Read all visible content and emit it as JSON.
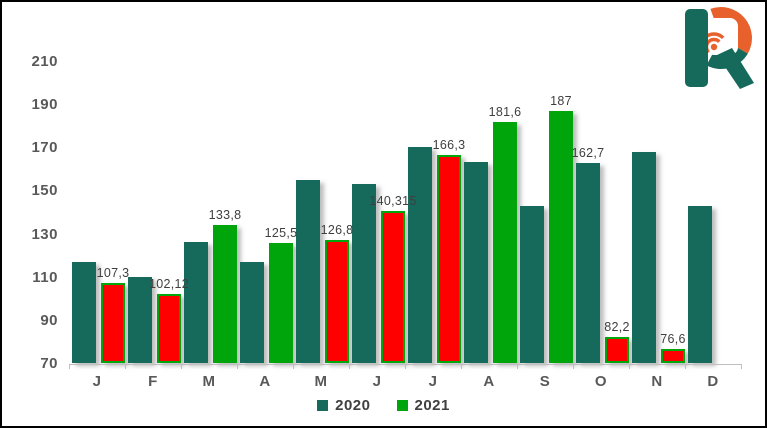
{
  "colors": {
    "teal_2020": "#166A5C",
    "green_2021": "#00A40B",
    "red_2021": "#FF0000",
    "red_border": "#00A40B",
    "axis_line": "#BFBFBF",
    "axis_text": "#595959",
    "data_label_text": "#3F3F3F",
    "frame_border": "#000000",
    "background": "#FFFFFF",
    "logo_teal": "#166A5C",
    "logo_orange": "#E8612C"
  },
  "chart_data": {
    "type": "bar",
    "title": "",
    "categories": [
      "J",
      "F",
      "M",
      "A",
      "M",
      "J",
      "J",
      "A",
      "S",
      "O",
      "N",
      "D"
    ],
    "y_axis": {
      "min": 70,
      "max": 210,
      "step": 20,
      "ticks": [
        70,
        90,
        110,
        130,
        150,
        170,
        190,
        210
      ]
    },
    "grid": false,
    "legend_position": "bottom-center",
    "series": [
      {
        "name": "2020",
        "color": "#166A5C",
        "values": [
          117,
          110,
          126,
          117,
          155,
          153,
          170,
          163,
          143,
          162.7,
          168,
          143
        ],
        "data_labels": [
          null,
          null,
          null,
          null,
          null,
          null,
          null,
          null,
          null,
          "162,7",
          null,
          null
        ]
      },
      {
        "name": "2021",
        "color_up": "#00A40B",
        "color_down": "#FF0000",
        "down_border_color": "#00A40B",
        "values": [
          107.3,
          102.12,
          133.8,
          125.5,
          126.8,
          140.315,
          166.3,
          181.6,
          187,
          82.2,
          76.6,
          null
        ],
        "point_styles": [
          "down",
          "down",
          "up",
          "up",
          "down",
          "down",
          "down",
          "up",
          "up",
          "down",
          "down",
          null
        ],
        "data_labels": [
          "107,3",
          "102,12",
          "133,8",
          "125,5",
          "126,8",
          "140,315",
          "166,3",
          "181,6",
          "187",
          "82,2",
          "76,6",
          null
        ]
      }
    ]
  },
  "legend": {
    "items": [
      {
        "label": "2020",
        "color": "#166A5C"
      },
      {
        "label": "2021",
        "color": "#00A40B"
      }
    ]
  },
  "logo": {
    "name": "R radio brandmark"
  }
}
